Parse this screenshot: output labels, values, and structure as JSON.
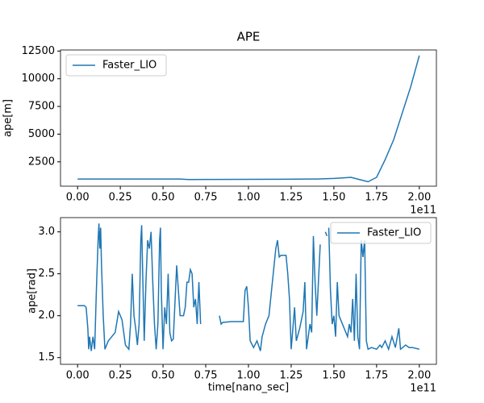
{
  "chart_data": [
    {
      "type": "line",
      "title": "APE",
      "ylabel": "ape[m]",
      "x_offset_label": "1e11",
      "legend": "upper left",
      "x": [
        0,
        0.2,
        0.4,
        0.6,
        0.65,
        0.8,
        1.0,
        1.2,
        1.4,
        1.5,
        1.55,
        1.6,
        1.65,
        1.7,
        1.75,
        1.8,
        1.85,
        1.9,
        1.95,
        2.0
      ],
      "series": [
        {
          "name": "Faster_LIO",
          "color": "#1f77b4",
          "values": [
            950,
            950,
            945,
            950,
            900,
            910,
            920,
            930,
            950,
            1000,
            1050,
            1100,
            900,
            700,
            1100,
            2700,
            4500,
            6900,
            9300,
            12100
          ]
        }
      ],
      "xlim": [
        -0.1,
        2.1
      ],
      "ylim": [
        300,
        12600
      ],
      "xticks": [
        {
          "value": 0,
          "label": "0.00"
        },
        {
          "value": 0.25,
          "label": "0.25"
        },
        {
          "value": 0.5,
          "label": "0.50"
        },
        {
          "value": 0.75,
          "label": "0.75"
        },
        {
          "value": 1,
          "label": "1.00"
        },
        {
          "value": 1.25,
          "label": "1.25"
        },
        {
          "value": 1.5,
          "label": "1.50"
        },
        {
          "value": 1.75,
          "label": "1.75"
        },
        {
          "value": 2,
          "label": "2.00"
        }
      ],
      "yticks": [
        2500,
        5000,
        7500,
        10000,
        12500
      ]
    },
    {
      "type": "line",
      "xlabel": "time[nano_sec]",
      "ylabel": "ape[rad]",
      "x_offset_label": "1e11",
      "legend": "upper right",
      "x": [
        0,
        0.04,
        0.05,
        0.06,
        0.065,
        0.07,
        0.08,
        0.09,
        0.1,
        0.11,
        0.12,
        0.125,
        0.13,
        0.135,
        0.14,
        0.15,
        0.16,
        0.18,
        0.2,
        0.22,
        0.24,
        0.26,
        0.28,
        0.3,
        0.31,
        0.32,
        0.33,
        0.34,
        0.35,
        0.36,
        0.37,
        0.375,
        0.38,
        0.39,
        0.4,
        0.41,
        0.42,
        0.43,
        0.44,
        0.45,
        0.46,
        0.47,
        0.48,
        0.485,
        0.49,
        0.5,
        0.51,
        0.52,
        0.53,
        0.54,
        0.55,
        0.56,
        0.58,
        0.59,
        0.6,
        0.62,
        0.63,
        0.64,
        0.65,
        0.66,
        0.67,
        0.68,
        0.69,
        0.7,
        0.71,
        0.72,
        0.78,
        0.83,
        0.84,
        0.85,
        0.9,
        0.97,
        0.98,
        0.99,
        1.0,
        1.01,
        1.03,
        1.05,
        1.07,
        1.08,
        1.1,
        1.12,
        1.14,
        1.15,
        1.16,
        1.17,
        1.18,
        1.19,
        1.22,
        1.23,
        1.24,
        1.25,
        1.27,
        1.28,
        1.3,
        1.32,
        1.33,
        1.34,
        1.36,
        1.37,
        1.38,
        1.39,
        1.4,
        1.42,
        1.44,
        1.45,
        1.46,
        1.465,
        1.47,
        1.48,
        1.49,
        1.5,
        1.51,
        1.52,
        1.53,
        1.55,
        1.57,
        1.58,
        1.59,
        1.6,
        1.61,
        1.62,
        1.63,
        1.64,
        1.65,
        1.66,
        1.67,
        1.68,
        1.69,
        1.7,
        1.72,
        1.75,
        1.77,
        1.78,
        1.8,
        1.82,
        1.84,
        1.86,
        1.88,
        1.89,
        1.92,
        1.94,
        1.96,
        2.0
      ],
      "series": [
        {
          "name": "Faster_LIO",
          "color": "#1f77b4",
          "values": [
            2.12,
            2.12,
            2.1,
            1.85,
            1.6,
            1.75,
            1.58,
            1.75,
            1.6,
            2.3,
            2.9,
            3.1,
            2.8,
            3.05,
            2.6,
            2.0,
            1.6,
            1.7,
            1.75,
            1.8,
            2.05,
            1.95,
            1.65,
            1.6,
            1.9,
            2.5,
            2.0,
            1.85,
            1.65,
            1.9,
            2.9,
            3.08,
            2.6,
            1.7,
            2.4,
            2.9,
            2.8,
            3.0,
            2.4,
            1.9,
            1.6,
            1.9,
            2.9,
            3.05,
            2.3,
            1.6,
            2.1,
            1.9,
            2.5,
            1.8,
            1.7,
            1.72,
            2.6,
            2.3,
            2.0,
            2.0,
            2.1,
            2.4,
            2.4,
            2.55,
            2.5,
            2.1,
            2.2,
            1.9,
            2.4,
            1.9,
            null,
            2.0,
            1.9,
            1.92,
            1.93,
            1.93,
            2.3,
            2.35,
            2.1,
            1.7,
            1.62,
            1.7,
            1.58,
            1.75,
            1.9,
            2.0,
            2.4,
            2.6,
            2.8,
            2.9,
            2.7,
            2.72,
            2.72,
            2.5,
            2.2,
            1.6,
            2.1,
            1.7,
            1.85,
            2.05,
            2.4,
            1.6,
            1.9,
            1.8,
            2.95,
            2.4,
            2.0,
            2.85,
            null,
            3.0,
            2.95,
            null,
            3.05,
            2.3,
            1.9,
            2.0,
            1.75,
            2.4,
            2.0,
            1.9,
            1.8,
            1.75,
            1.9,
            1.8,
            2.2,
            1.7,
            2.5,
            1.75,
            1.6,
            2.9,
            2.7,
            2.9,
            1.7,
            1.6,
            1.62,
            1.6,
            1.65,
            1.62,
            1.7,
            1.6,
            1.75,
            1.62,
            1.85,
            1.6,
            1.65,
            1.62,
            1.62,
            1.6
          ]
        }
      ],
      "xlim": [
        -0.1,
        2.1
      ],
      "ylim": [
        1.42,
        3.17
      ],
      "xticks": [
        {
          "value": 0,
          "label": "0.00"
        },
        {
          "value": 0.25,
          "label": "0.25"
        },
        {
          "value": 0.5,
          "label": "0.50"
        },
        {
          "value": 0.75,
          "label": "0.75"
        },
        {
          "value": 1,
          "label": "1.00"
        },
        {
          "value": 1.25,
          "label": "1.25"
        },
        {
          "value": 1.5,
          "label": "1.50"
        },
        {
          "value": 1.75,
          "label": "1.75"
        },
        {
          "value": 2,
          "label": "2.00"
        }
      ],
      "yticks": [
        1.5,
        {
          "value": 2,
          "label": "2.0"
        },
        2.5,
        {
          "value": 3,
          "label": "3.0"
        }
      ]
    }
  ]
}
